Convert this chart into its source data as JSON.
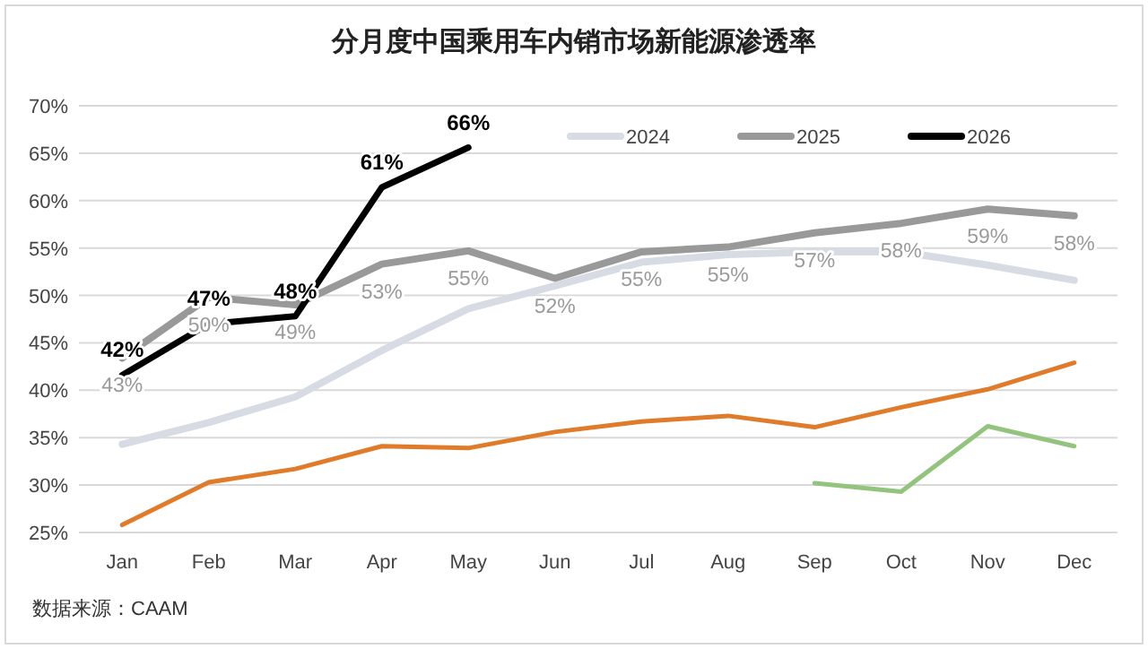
{
  "chart_data": {
    "type": "line",
    "title": "分月度中国乘用车内销市场新能源渗透率",
    "categories": [
      "Jan",
      "Feb",
      "Mar",
      "Apr",
      "May",
      "Jun",
      "Jul",
      "Aug",
      "Sep",
      "Oct",
      "Nov",
      "Dec"
    ],
    "ylim": [
      25,
      70
    ],
    "yticks": [
      {
        "value": 25,
        "label": "25%"
      },
      {
        "value": 30,
        "label": "30%"
      },
      {
        "value": 35,
        "label": "35%"
      },
      {
        "value": 40,
        "label": "40%"
      },
      {
        "value": 45,
        "label": "45%"
      },
      {
        "value": 50,
        "label": "50%"
      },
      {
        "value": 55,
        "label": "55%"
      },
      {
        "value": 60,
        "label": "60%"
      },
      {
        "value": 65,
        "label": "65%"
      },
      {
        "value": 70,
        "label": "70%"
      }
    ],
    "grid": "y",
    "legend": "top right",
    "marker": "none",
    "line_style": "solid",
    "series": [
      {
        "color": "#93c47d",
        "values": [
          null,
          null,
          null,
          null,
          null,
          null,
          null,
          null,
          30.2,
          29.3,
          36.2,
          34.1
        ]
      },
      {
        "color": "#e07b2a",
        "values": [
          25.8,
          30.3,
          31.7,
          34.1,
          33.9,
          35.6,
          36.7,
          37.3,
          36.1,
          38.2,
          40.1,
          42.9
        ]
      },
      {
        "name": "2024",
        "color": "#d6dbe4",
        "values": [
          34.3,
          36.6,
          39.3,
          44.2,
          48.6,
          51.0,
          53.5,
          54.3,
          54.6,
          54.6,
          53.2,
          51.6
        ]
      },
      {
        "name": "2025",
        "color": "#999999",
        "values": [
          43.4,
          49.8,
          49.0,
          53.3,
          54.7,
          51.8,
          54.6,
          55.1,
          56.6,
          57.6,
          59.1,
          58.4
        ],
        "value_labels": [
          "43%",
          "50%",
          "49%",
          "53%",
          "55%",
          "52%",
          "55%",
          "55%",
          "57%",
          "58%",
          "59%",
          "58%"
        ]
      },
      {
        "name": "2026",
        "color": "#000000",
        "values": [
          41.6,
          47.0,
          47.8,
          61.4,
          65.6,
          null,
          null,
          null,
          null,
          null,
          null,
          null
        ],
        "value_labels": [
          "42%",
          "47%",
          "48%",
          "61%",
          "66%",
          null,
          null,
          null,
          null,
          null,
          null,
          null
        ]
      }
    ],
    "annotations": [
      "数据来源：CAAM"
    ]
  }
}
